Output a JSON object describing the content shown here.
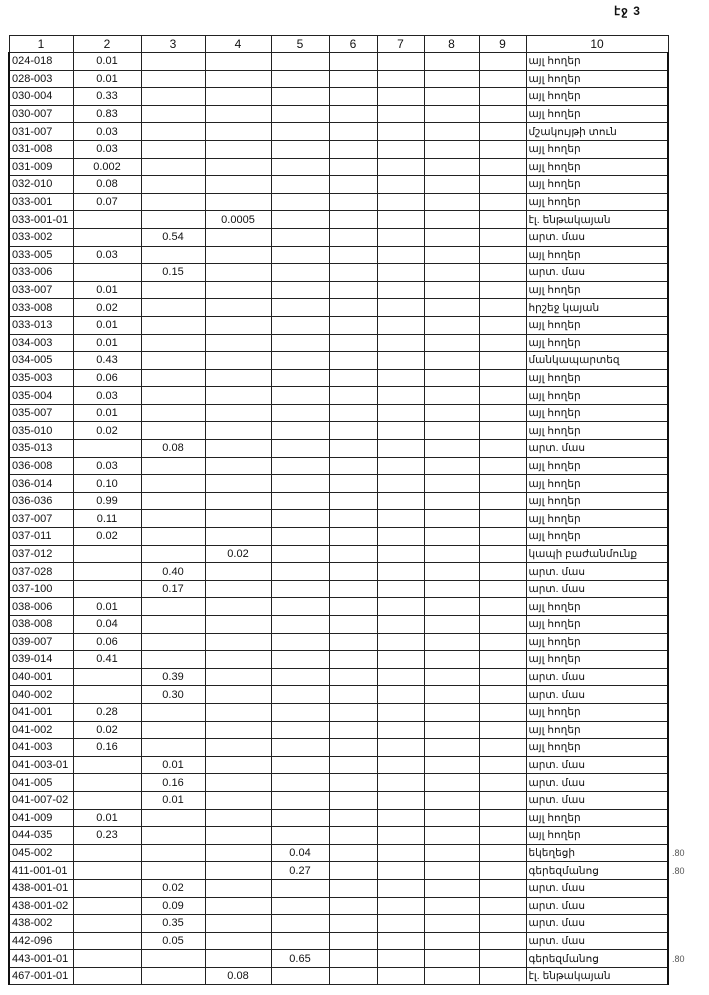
{
  "page_label": "էջ 3",
  "headers": [
    "1",
    "2",
    "3",
    "4",
    "5",
    "6",
    "7",
    "8",
    "9",
    "10"
  ],
  "rows": [
    [
      "024-018",
      "0.01",
      "",
      "",
      "",
      "այլ հողեր"
    ],
    [
      "028-003",
      "0.01",
      "",
      "",
      "",
      "այլ հողեր"
    ],
    [
      "030-004",
      "0.33",
      "",
      "",
      "",
      "այլ հողեր"
    ],
    [
      "030-007",
      "0.83",
      "",
      "",
      "",
      "այլ հողեր"
    ],
    [
      "031-007",
      "0.03",
      "",
      "",
      "",
      "մշակույթի տուն"
    ],
    [
      "031-008",
      "0.03",
      "",
      "",
      "",
      "այլ հողեր"
    ],
    [
      "031-009",
      "0.002",
      "",
      "",
      "",
      "այլ հողեր"
    ],
    [
      "032-010",
      "0.08",
      "",
      "",
      "",
      "այլ հողեր"
    ],
    [
      "033-001",
      "0.07",
      "",
      "",
      "",
      "այլ հողեր"
    ],
    [
      "033-001-01",
      "",
      "",
      "0.0005",
      "",
      "էլ. ենթակայան"
    ],
    [
      "033-002",
      "",
      "0.54",
      "",
      "",
      "արտ. մաս"
    ],
    [
      "033-005",
      "0.03",
      "",
      "",
      "",
      "այլ հողեր"
    ],
    [
      "033-006",
      "",
      "0.15",
      "",
      "",
      "արտ. մաս"
    ],
    [
      "033-007",
      "0.01",
      "",
      "",
      "",
      "այլ հողեր"
    ],
    [
      "033-008",
      "0.02",
      "",
      "",
      "",
      "հրշեջ կայան"
    ],
    [
      "033-013",
      "0.01",
      "",
      "",
      "",
      "այլ հողեր"
    ],
    [
      "034-003",
      "0.01",
      "",
      "",
      "",
      "այլ հողեր"
    ],
    [
      "034-005",
      "0.43",
      "",
      "",
      "",
      "մանկապարտեզ"
    ],
    [
      "035-003",
      "0.06",
      "",
      "",
      "",
      "այլ հողեր"
    ],
    [
      "035-004",
      "0.03",
      "",
      "",
      "",
      "այլ հողեր"
    ],
    [
      "035-007",
      "0.01",
      "",
      "",
      "",
      "այլ հողեր"
    ],
    [
      "035-010",
      "0.02",
      "",
      "",
      "",
      "այլ հողեր"
    ],
    [
      "035-013",
      "",
      "0.08",
      "",
      "",
      "արտ. մաս"
    ],
    [
      "036-008",
      "0.03",
      "",
      "",
      "",
      "այլ հողեր"
    ],
    [
      "036-014",
      "0.10",
      "",
      "",
      "",
      "այլ հողեր"
    ],
    [
      "036-036",
      "0.99",
      "",
      "",
      "",
      "այլ հողեր"
    ],
    [
      "037-007",
      "0.11",
      "",
      "",
      "",
      "այլ հողեր"
    ],
    [
      "037-011",
      "0.02",
      "",
      "",
      "",
      "այլ հողեր"
    ],
    [
      "037-012",
      "",
      "",
      "0.02",
      "",
      "կապի բաժանմունք"
    ],
    [
      "037-028",
      "",
      "0.40",
      "",
      "",
      "արտ. մաս"
    ],
    [
      "037-100",
      "",
      "0.17",
      "",
      "",
      "արտ. մաս"
    ],
    [
      "038-006",
      "0.01",
      "",
      "",
      "",
      "այլ հողեր"
    ],
    [
      "038-008",
      "0.04",
      "",
      "",
      "",
      "այլ հողեր"
    ],
    [
      "039-007",
      "0.06",
      "",
      "",
      "",
      "այլ հողեր"
    ],
    [
      "039-014",
      "0.41",
      "",
      "",
      "",
      "այլ հողեր"
    ],
    [
      "040-001",
      "",
      "0.39",
      "",
      "",
      "արտ. մաս"
    ],
    [
      "040-002",
      "",
      "0.30",
      "",
      "",
      "արտ. մաս"
    ],
    [
      "041-001",
      "0.28",
      "",
      "",
      "",
      "այլ հողեր"
    ],
    [
      "041-002",
      "0.02",
      "",
      "",
      "",
      "այլ հողեր"
    ],
    [
      "041-003",
      "0.16",
      "",
      "",
      "",
      "այլ հողեր"
    ],
    [
      "041-003-01",
      "",
      "0.01",
      "",
      "",
      "արտ. մաս"
    ],
    [
      "041-005",
      "",
      "0.16",
      "",
      "",
      "արտ. մաս"
    ],
    [
      "041-007-02",
      "",
      "0.01",
      "",
      "",
      "արտ. մաս"
    ],
    [
      "041-009",
      "0.01",
      "",
      "",
      "",
      "այլ հողեր"
    ],
    [
      "044-035",
      "0.23",
      "",
      "",
      "",
      "այլ հողեր"
    ],
    [
      "045-002",
      "",
      "",
      "",
      "0.04",
      "եկեղեցի"
    ],
    [
      "411-001-01",
      "",
      "",
      "",
      "0.27",
      "գերեզմանոց"
    ],
    [
      "438-001-01",
      "",
      "0.02",
      "",
      "",
      "արտ. մաս"
    ],
    [
      "438-001-02",
      "",
      "0.09",
      "",
      "",
      "արտ. մաս"
    ],
    [
      "438-002",
      "",
      "0.35",
      "",
      "",
      "արտ. մաս"
    ],
    [
      "442-096",
      "",
      "0.05",
      "",
      "",
      "արտ. մաս"
    ],
    [
      "443-001-01",
      "",
      "",
      "",
      "0.65",
      "գերեզմանոց"
    ],
    [
      "467-001-01",
      "",
      "",
      "0.08",
      "",
      "էլ. ենթակայան"
    ]
  ],
  "margin_notes": [
    {
      "row": 45,
      "text": ".80"
    },
    {
      "row": 46,
      "text": ".80"
    },
    {
      "row": 51,
      "text": ".80"
    }
  ]
}
